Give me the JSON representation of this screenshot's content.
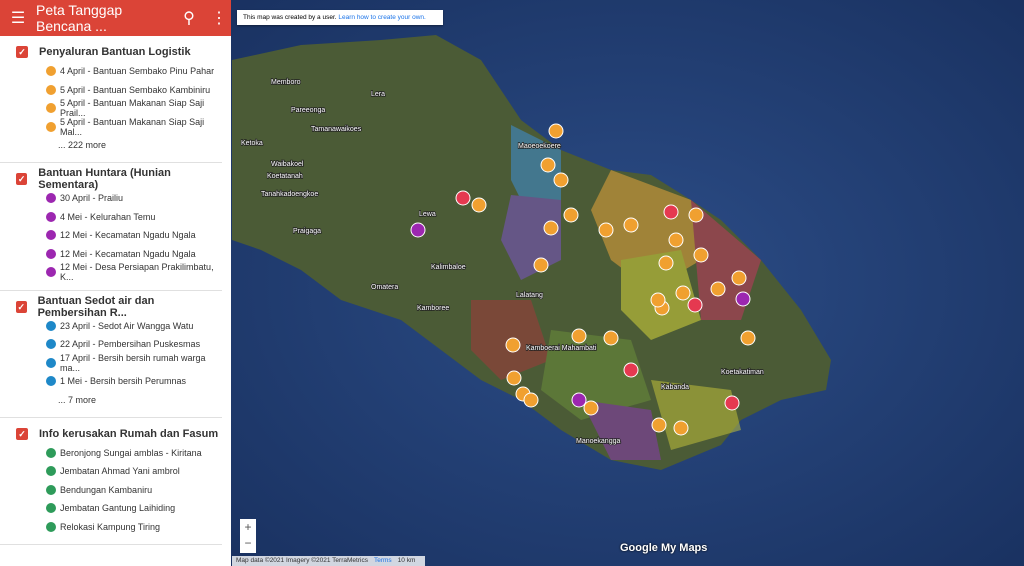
{
  "header": {
    "title": "Peta Tanggap Bencana ..."
  },
  "layers": [
    {
      "title": "Penyaluran Bantuan Logistik",
      "items": [
        "4 April - Bantuan Sembako Pinu Pahar",
        "5 April - Bantuan Sembako Kambiniru",
        "5 April - Bantuan Makanan Siap Saji Prail...",
        "5 April - Bantuan Makanan Siap Saji Mal..."
      ],
      "more": "... 222 more"
    },
    {
      "title": "Bantuan Huntara (Hunian Sementara)",
      "items": [
        "30 April - Prailiu",
        "4 Mei - Kelurahan Temu",
        "12 Mei - Kecamatan Ngadu Ngala",
        "12 Mei - Kecamatan Ngadu Ngala",
        "12 Mei - Desa Persiapan Prakilimbatu, K..."
      ]
    },
    {
      "title": "Bantuan Sedot air dan Pembersihan R...",
      "items": [
        "23 April - Sedot Air Wangga Watu",
        "22 April - Pembersihan Puskesmas",
        "17 April - Bersih bersih rumah warga ma...",
        "1 Mei - Bersih bersih Perumnas"
      ],
      "more": "... 7 more"
    },
    {
      "title": "Info kerusakan Rumah dan Fasum",
      "items": [
        "Beronjong Sungai amblas - Kiritana",
        "Jembatan Ahmad Yani ambrol",
        "Bendungan Kambaniru",
        "Jembatan Gantung Laihiding",
        "Relokasi Kampung Tiring"
      ]
    }
  ],
  "banner": {
    "text": "This map was created by a user.",
    "link": "Learn how to create your own."
  },
  "map": {
    "labels": [
      "Memboro",
      "Lera",
      "Pareeonga",
      "Tamanawaikoes",
      "Ketoka",
      "Waibakoel",
      "Koetatanah",
      "Tanahkadoengkoe",
      "Lewa",
      "Praigaga",
      "Kalimbaloe",
      "Omatera",
      "Kamboree",
      "Lalatang",
      "Maoeoekoere",
      "Kamboerai Mahambati",
      "Kabanda",
      "Manoekangga",
      "Koetakatiman"
    ]
  },
  "footer": {
    "attribution": "Map data ©2021 Imagery ©2021 TerraMetrics",
    "terms": "Terms",
    "scale": "10 km"
  },
  "logo": "Google My Maps"
}
